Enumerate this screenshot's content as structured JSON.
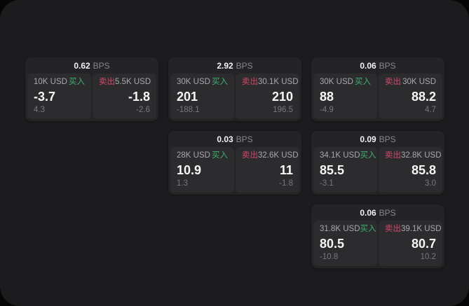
{
  "colors": {
    "panel_bg": "#1c1c1e",
    "card_bg": "#242427",
    "tile_bg": "#2c2c2f",
    "buy_green": "#3cb46e",
    "sell_red": "#d4486b"
  },
  "cards": [
    {
      "bps_value": "0.62",
      "bps_unit": "BPS",
      "row": 1,
      "col": 1,
      "buy": {
        "notional": "10K USD",
        "side_label": "买入",
        "price": "-3.7",
        "change": "4.3"
      },
      "sell": {
        "side_label": "卖出",
        "notional": "5.5K USD",
        "price": "-1.8",
        "change": "-2.6"
      }
    },
    {
      "bps_value": "2.92",
      "bps_unit": "BPS",
      "row": 1,
      "col": 2,
      "buy": {
        "notional": "30K USD",
        "side_label": "买入",
        "price": "201",
        "change": "-188.1"
      },
      "sell": {
        "side_label": "卖出",
        "notional": "30.1K USD",
        "price": "210",
        "change": "196.5"
      }
    },
    {
      "bps_value": "0.06",
      "bps_unit": "BPS",
      "row": 1,
      "col": 3,
      "buy": {
        "notional": "30K USD",
        "side_label": "买入",
        "price": "88",
        "change": "-4.9"
      },
      "sell": {
        "side_label": "卖出",
        "notional": "30K USD",
        "price": "88.2",
        "change": "4.7"
      }
    },
    {
      "bps_value": "0.03",
      "bps_unit": "BPS",
      "row": 2,
      "col": 2,
      "buy": {
        "notional": "28K USD",
        "side_label": "买入",
        "price": "10.9",
        "change": "1.3"
      },
      "sell": {
        "side_label": "卖出",
        "notional": "32.6K USD",
        "price": "11",
        "change": "-1.8"
      }
    },
    {
      "bps_value": "0.09",
      "bps_unit": "BPS",
      "row": 2,
      "col": 3,
      "buy": {
        "notional": "34.1K USD",
        "side_label": "买入",
        "price": "85.5",
        "change": "-3.1"
      },
      "sell": {
        "side_label": "卖出",
        "notional": "32.8K USD",
        "price": "85.8",
        "change": "3.0"
      }
    },
    {
      "bps_value": "0.06",
      "bps_unit": "BPS",
      "row": 3,
      "col": 3,
      "buy": {
        "notional": "31.8K USD",
        "side_label": "买入",
        "price": "80.5",
        "change": "-10.8"
      },
      "sell": {
        "side_label": "卖出",
        "notional": "39.1K USD",
        "price": "80.7",
        "change": "10.2"
      }
    }
  ]
}
